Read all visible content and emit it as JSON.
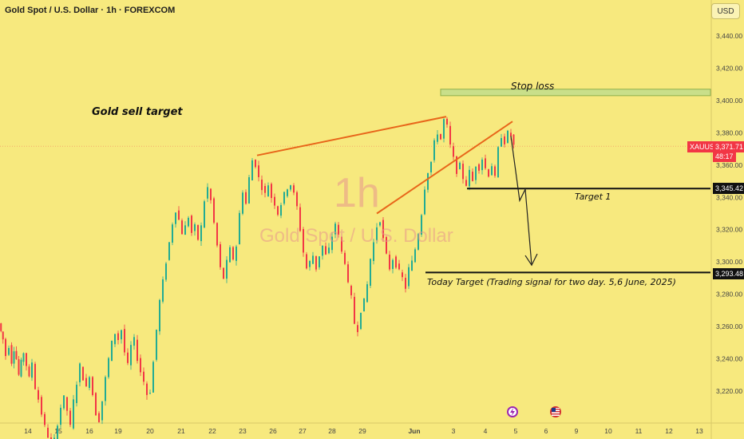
{
  "header": {
    "title": "Gold Spot / U.S. Dollar · 1h · FOREXCOM"
  },
  "currency_button": "USD",
  "watermark": {
    "interval": "1h",
    "name": "Gold Spot / U.S. Dollar"
  },
  "annotations": {
    "title": "Gold sell target",
    "stop_loss": "Stop loss",
    "target1": "Target 1",
    "today_target": "Today Target (Trading signal for two day. 5,6 June, 2025)"
  },
  "price_tags": {
    "symbol": "XAUUSD",
    "last_price": "3,371.71",
    "countdown": "48:17",
    "target1_price": "3,345.42",
    "today_target_price": "3,293.48"
  },
  "colors": {
    "background": "#f7e97e",
    "candle_up": "#22ab94",
    "candle_down": "#f23645",
    "trendline": "#e8661a",
    "stop_loss_zone": "#c9df8a",
    "price_tag": "#f23645"
  },
  "chart_data": {
    "type": "candlestick",
    "symbol": "Gold Spot / U.S. Dollar",
    "interval": "1h",
    "ylim": [
      3200,
      3460
    ],
    "y_ticks": [
      3220,
      3240,
      3260,
      3280,
      3300,
      3320,
      3340,
      3360,
      3380,
      3400,
      3420,
      3440
    ],
    "y_tick_labels": [
      "3,220.00",
      "3,240.00",
      "3,260.00",
      "3,280.00",
      "3,300.00",
      "3,320.00",
      "3,340.00",
      "3,360.00",
      "3,380.00",
      "3,400.00",
      "3,420.00",
      "3,440.00"
    ],
    "x_tick_labels": [
      "14",
      "15",
      "16",
      "19",
      "20",
      "21",
      "22",
      "23",
      "26",
      "27",
      "28",
      "29",
      "Jun",
      "3",
      "4",
      "5",
      "6",
      "9",
      "10",
      "11",
      "12",
      "13"
    ],
    "key_levels": {
      "stop_loss_low": 3403,
      "stop_loss_high": 3407,
      "target1": 3345.42,
      "today_target": 3293.48,
      "last_price": 3371.71
    },
    "price_path": [
      [
        0,
        3262
      ],
      [
        5,
        3252
      ],
      [
        9,
        3242
      ],
      [
        13,
        3248
      ],
      [
        16,
        3238
      ],
      [
        19,
        3246
      ],
      [
        22,
        3240
      ],
      [
        25,
        3230
      ],
      [
        28,
        3238
      ],
      [
        31,
        3244
      ],
      [
        35,
        3236
      ],
      [
        38,
        3228
      ],
      [
        42,
        3238
      ],
      [
        46,
        3222
      ],
      [
        50,
        3215
      ],
      [
        54,
        3206
      ],
      [
        58,
        3198
      ],
      [
        62,
        3192
      ],
      [
        66,
        3188
      ],
      [
        70,
        3190
      ],
      [
        74,
        3200
      ],
      [
        78,
        3210
      ],
      [
        82,
        3216
      ],
      [
        86,
        3208
      ],
      [
        90,
        3198
      ],
      [
        94,
        3214
      ],
      [
        98,
        3225
      ],
      [
        102,
        3236
      ],
      [
        106,
        3228
      ],
      [
        110,
        3222
      ],
      [
        114,
        3230
      ],
      [
        118,
        3218
      ],
      [
        122,
        3206
      ],
      [
        126,
        3202
      ],
      [
        130,
        3214
      ],
      [
        134,
        3228
      ],
      [
        138,
        3240
      ],
      [
        142,
        3250
      ],
      [
        146,
        3256
      ],
      [
        150,
        3252
      ],
      [
        154,
        3258
      ],
      [
        158,
        3244
      ],
      [
        162,
        3236
      ],
      [
        166,
        3248
      ],
      [
        170,
        3252
      ],
      [
        174,
        3240
      ],
      [
        178,
        3232
      ],
      [
        182,
        3226
      ],
      [
        186,
        3218
      ],
      [
        190,
        3220
      ],
      [
        194,
        3238
      ],
      [
        198,
        3258
      ],
      [
        202,
        3276
      ],
      [
        206,
        3288
      ],
      [
        210,
        3300
      ],
      [
        214,
        3312
      ],
      [
        218,
        3324
      ],
      [
        222,
        3332
      ],
      [
        226,
        3326
      ],
      [
        230,
        3318
      ],
      [
        234,
        3322
      ],
      [
        238,
        3328
      ],
      [
        242,
        3318
      ],
      [
        246,
        3322
      ],
      [
        250,
        3314
      ],
      [
        254,
        3322
      ],
      [
        258,
        3338
      ],
      [
        262,
        3346
      ],
      [
        266,
        3338
      ],
      [
        270,
        3324
      ],
      [
        274,
        3310
      ],
      [
        278,
        3296
      ],
      [
        282,
        3290
      ],
      [
        286,
        3300
      ],
      [
        290,
        3308
      ],
      [
        294,
        3302
      ],
      [
        298,
        3310
      ],
      [
        302,
        3330
      ],
      [
        306,
        3344
      ],
      [
        310,
        3336
      ],
      [
        314,
        3352
      ],
      [
        318,
        3363
      ],
      [
        322,
        3360
      ],
      [
        326,
        3352
      ],
      [
        330,
        3346
      ],
      [
        334,
        3342
      ],
      [
        338,
        3348
      ],
      [
        342,
        3340
      ],
      [
        346,
        3336
      ],
      [
        350,
        3330
      ],
      [
        354,
        3336
      ],
      [
        358,
        3342
      ],
      [
        362,
        3346
      ],
      [
        366,
        3348
      ],
      [
        370,
        3342
      ],
      [
        374,
        3334
      ],
      [
        378,
        3320
      ],
      [
        382,
        3306
      ],
      [
        386,
        3296
      ],
      [
        390,
        3300
      ],
      [
        394,
        3304
      ],
      [
        398,
        3296
      ],
      [
        402,
        3304
      ],
      [
        406,
        3310
      ],
      [
        410,
        3304
      ],
      [
        414,
        3308
      ],
      [
        418,
        3316
      ],
      [
        422,
        3324
      ],
      [
        426,
        3316
      ],
      [
        430,
        3306
      ],
      [
        434,
        3300
      ],
      [
        438,
        3286
      ],
      [
        442,
        3278
      ],
      [
        446,
        3262
      ],
      [
        450,
        3258
      ],
      [
        454,
        3270
      ],
      [
        458,
        3276
      ],
      [
        462,
        3286
      ],
      [
        466,
        3302
      ],
      [
        470,
        3312
      ],
      [
        474,
        3322
      ],
      [
        478,
        3326
      ],
      [
        482,
        3314
      ],
      [
        486,
        3304
      ],
      [
        490,
        3296
      ],
      [
        494,
        3302
      ],
      [
        498,
        3298
      ],
      [
        502,
        3294
      ],
      [
        506,
        3290
      ],
      [
        510,
        3284
      ],
      [
        514,
        3296
      ],
      [
        518,
        3300
      ],
      [
        522,
        3308
      ],
      [
        526,
        3318
      ],
      [
        530,
        3330
      ],
      [
        534,
        3346
      ],
      [
        538,
        3356
      ],
      [
        542,
        3362
      ],
      [
        546,
        3374
      ],
      [
        550,
        3380
      ],
      [
        554,
        3376
      ],
      [
        558,
        3388
      ],
      [
        562,
        3384
      ],
      [
        566,
        3372
      ],
      [
        570,
        3364
      ],
      [
        574,
        3356
      ],
      [
        578,
        3360
      ],
      [
        582,
        3352
      ],
      [
        586,
        3348
      ],
      [
        590,
        3356
      ],
      [
        594,
        3350
      ],
      [
        598,
        3360
      ],
      [
        602,
        3358
      ],
      [
        606,
        3364
      ],
      [
        610,
        3358
      ],
      [
        614,
        3354
      ],
      [
        618,
        3360
      ],
      [
        622,
        3352
      ],
      [
        626,
        3370
      ],
      [
        630,
        3378
      ],
      [
        634,
        3374
      ],
      [
        638,
        3380
      ],
      [
        642,
        3378
      ],
      [
        645,
        3372
      ]
    ]
  }
}
